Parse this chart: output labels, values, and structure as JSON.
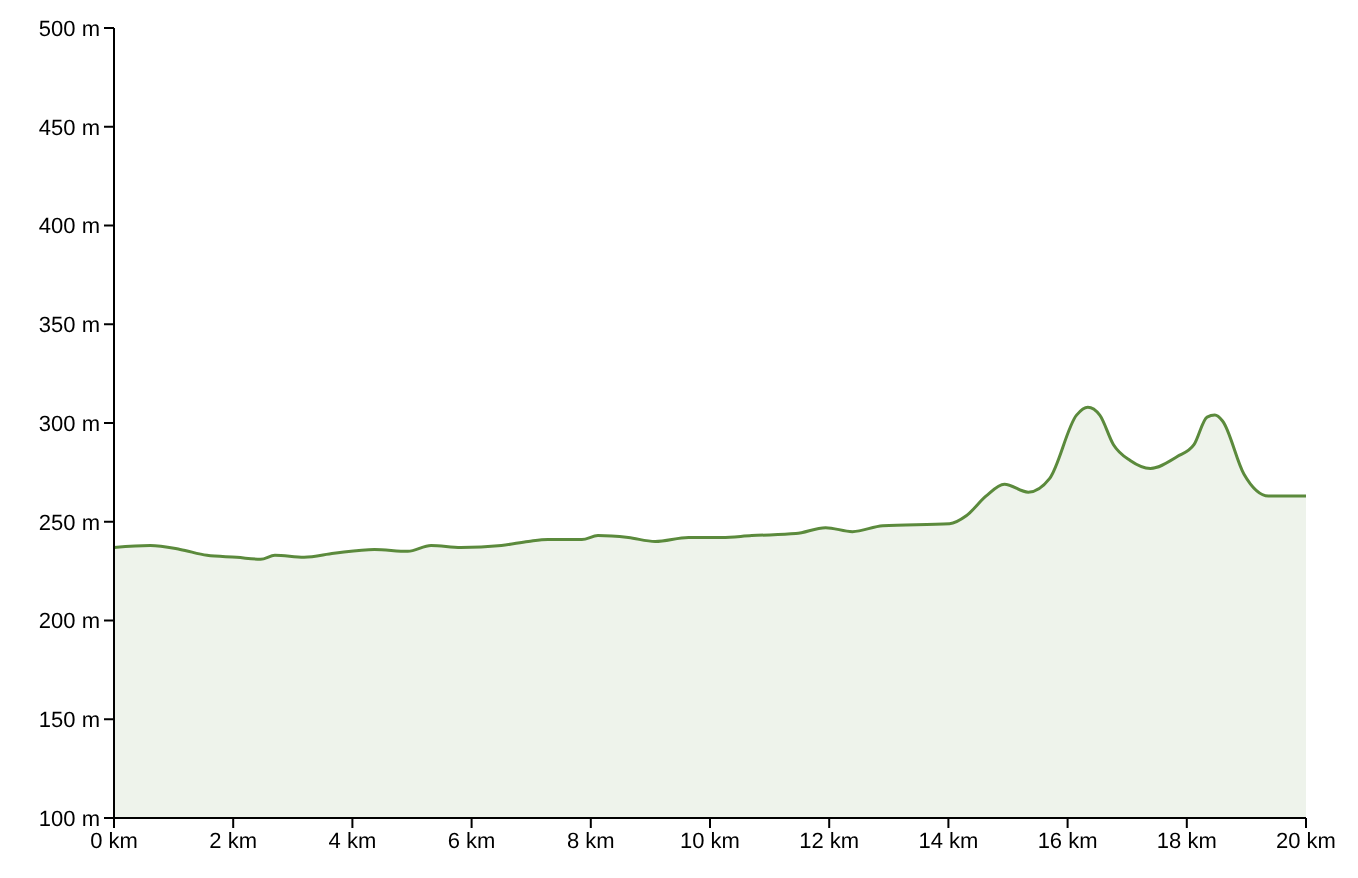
{
  "chart_data": {
    "type": "area",
    "x": [
      0,
      0.61,
      1.11,
      1.56,
      2.06,
      2.46,
      2.7,
      3.19,
      3.69,
      4.37,
      4.93,
      5.32,
      5.82,
      6.5,
      6.95,
      7.28,
      7.85,
      8.12,
      8.63,
      9.08,
      9.64,
      10.2,
      10.7,
      11.44,
      11.94,
      12.39,
      12.9,
      14.02,
      14.3,
      14.63,
      14.94,
      15.34,
      15.7,
      16.15,
      16.34,
      16.54,
      16.77,
      17.05,
      17.39,
      17.84,
      18.12,
      18.34,
      18.47,
      18.6,
      18.96,
      19.37,
      19.69,
      20
    ],
    "series": [
      {
        "color": "#5b8a3c",
        "values": [
          237,
          238,
          236,
          233,
          232,
          231,
          233,
          232,
          234,
          236,
          235,
          238,
          237,
          238,
          240,
          241,
          241,
          243,
          242,
          240,
          242,
          242,
          243,
          244,
          247,
          245,
          248,
          249,
          253,
          263,
          269,
          265,
          272,
          304,
          308,
          304,
          289,
          281,
          277,
          283,
          289,
          303,
          304,
          301,
          274,
          263,
          263,
          263
        ]
      }
    ],
    "xlim": [
      0,
      20
    ],
    "xticks": [
      {
        "value": 0,
        "label": "0 km"
      },
      {
        "value": 2,
        "label": "2 km"
      },
      {
        "value": 4,
        "label": "4 km"
      },
      {
        "value": 6,
        "label": "6 km"
      },
      {
        "value": 8,
        "label": "8 km"
      },
      {
        "value": 10,
        "label": "10 km"
      },
      {
        "value": 12,
        "label": "12 km"
      },
      {
        "value": 14,
        "label": "14 km"
      },
      {
        "value": 16,
        "label": "16 km"
      },
      {
        "value": 18,
        "label": "18 km"
      },
      {
        "value": 20,
        "label": "20 km"
      }
    ],
    "ylim": [
      100,
      500
    ],
    "yticks": [
      {
        "value": 100,
        "label": "100 m"
      },
      {
        "value": 150,
        "label": "150 m"
      },
      {
        "value": 200,
        "label": "200 m"
      },
      {
        "value": 250,
        "label": "250 m"
      },
      {
        "value": 300,
        "label": "300 m"
      },
      {
        "value": 350,
        "label": "350 m"
      },
      {
        "value": 400,
        "label": "400 m"
      },
      {
        "value": 450,
        "label": "450 m"
      },
      {
        "value": 500,
        "label": "500 m"
      }
    ],
    "grid": false,
    "legend": false
  }
}
